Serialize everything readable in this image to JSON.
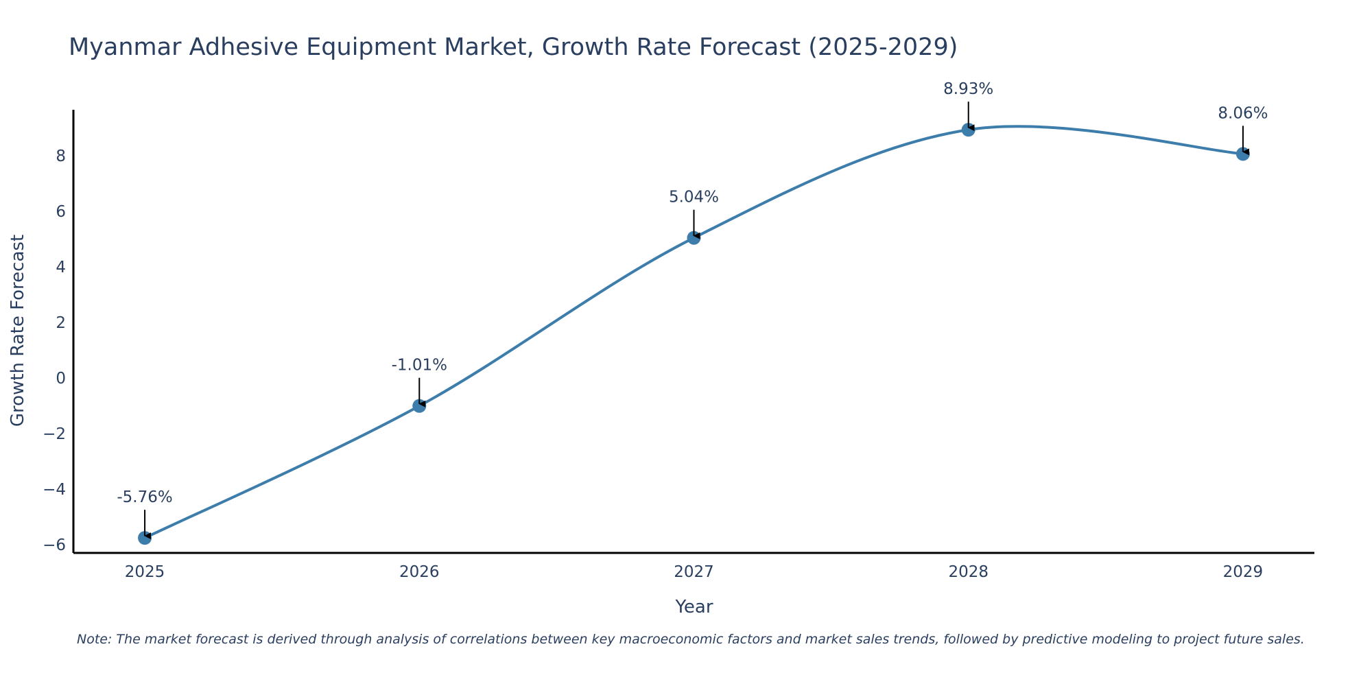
{
  "chart_data": {
    "type": "line",
    "title": "Myanmar Adhesive Equipment Market, Growth Rate Forecast (2025-2029)",
    "xlabel": "Year",
    "ylabel": "Growth Rate Forecast",
    "categories": [
      "2025",
      "2026",
      "2027",
      "2028",
      "2029"
    ],
    "x": [
      2025,
      2026,
      2027,
      2028,
      2029
    ],
    "series": [
      {
        "name": "Growth Rate Forecast",
        "values": [
          -5.76,
          -1.01,
          5.04,
          8.93,
          8.06
        ]
      }
    ],
    "data_labels": [
      "-5.76%",
      "-1.01%",
      "5.04%",
      "8.93%",
      "8.06%"
    ],
    "yticks": [
      -6,
      -4,
      -2,
      0,
      2,
      4,
      6,
      8
    ],
    "ytick_labels": [
      "−6",
      "−4",
      "−2",
      "0",
      "2",
      "4",
      "6",
      "8"
    ],
    "xlim": [
      2024.74,
      2029.26
    ],
    "ylim": [
      -6.3,
      9.65
    ],
    "grid": false,
    "legend": "none",
    "line_shape": "spline",
    "colors": {
      "line": "#3d7dac",
      "marker": "#3d7dac",
      "axis": "#000000",
      "text": "#2a3f5f",
      "arrow": "#000000"
    }
  },
  "note": "Note: The market forecast is derived through analysis of correlations between key macroeconomic factors and market sales trends, followed by predictive modeling to project future sales."
}
